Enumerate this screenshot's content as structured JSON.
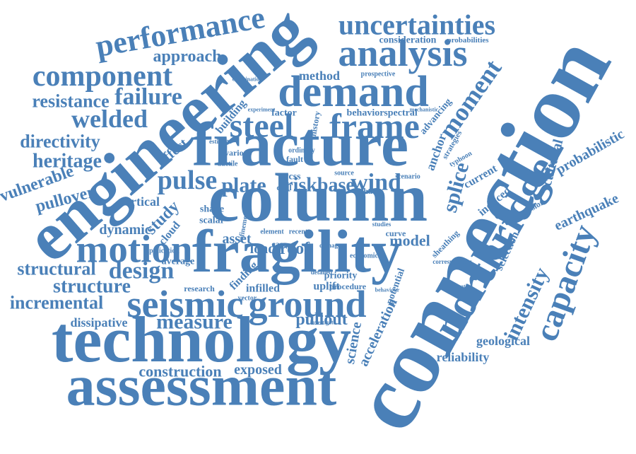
{
  "word_cloud": {
    "color": "#4a80b8",
    "words": [
      "connection",
      "engineering",
      "fracture",
      "column",
      "fragility",
      "technology",
      "assessment",
      "northridge",
      "capacity",
      "seismic",
      "ground",
      "demand",
      "analysis",
      "uncertainties",
      "performance",
      "approach",
      "component",
      "resistance",
      "failure",
      "welded",
      "directivity",
      "heritage",
      "vulnerable",
      "pullover",
      "steel",
      "frame",
      "pulse",
      "plate",
      "riskbase",
      "wind",
      "motion",
      "design",
      "structural",
      "structure",
      "incremental",
      "measure",
      "dissipative",
      "construction",
      "exposed",
      "pullout",
      "science",
      "acceleration",
      "reliability",
      "geological",
      "earthquake",
      "probabilistic",
      "intensity",
      "cultural",
      "moment",
      "splice",
      "anchor",
      "selection",
      "induced",
      "current",
      "compression",
      "method",
      "consideration",
      "probabilities",
      "prospective",
      "behavior",
      "spectral",
      "advancing",
      "building",
      "factor",
      "history",
      "effect",
      "dynamic",
      "study",
      "vertical",
      "cloud",
      "shape",
      "scalar",
      "average",
      "asset",
      "load",
      "roof",
      "model",
      "finding",
      "infilled",
      "uplift",
      "priority",
      "procedure",
      "research",
      "potential",
      "sheathing",
      "wcss",
      "application",
      "vector",
      "economic",
      "detailed",
      "corresponding",
      "typhoon",
      "strategies",
      "scenario",
      "psha",
      "source",
      "fault",
      "ordinary",
      "various",
      "estimate",
      "ductile",
      "refinement",
      "element",
      "case",
      "recent",
      "damage",
      "curve",
      "combination",
      "experiment",
      "alternative",
      "behaviour",
      "investigate",
      "studies",
      "civil",
      "mechanistic"
    ]
  }
}
